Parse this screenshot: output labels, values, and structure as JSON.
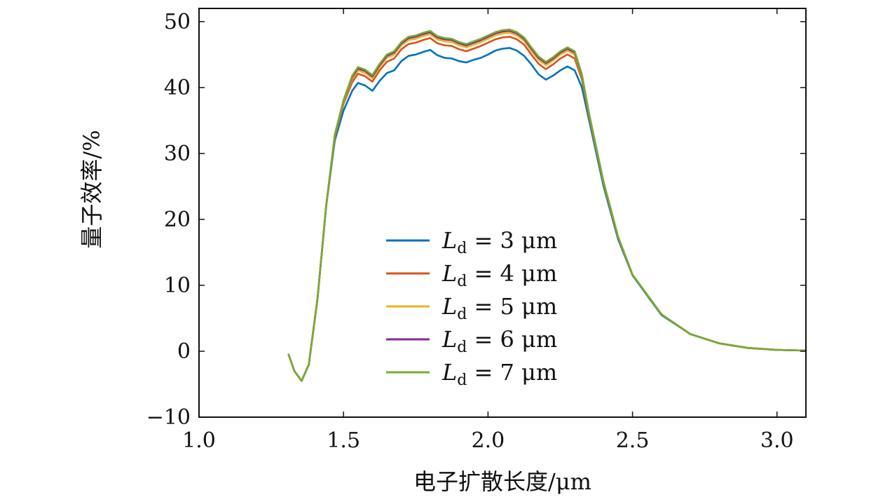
{
  "chart_data": {
    "type": "line",
    "title": "",
    "xlabel": "电子扩散长度/μm",
    "ylabel": "量子效率/%",
    "xlim": [
      1.0,
      3.1
    ],
    "ylim": [
      -10,
      52
    ],
    "xticks": [
      1.0,
      1.5,
      2.0,
      2.5,
      3.0
    ],
    "xtick_labels": [
      "1.0",
      "1.5",
      "2.0",
      "2.5",
      "3.0"
    ],
    "yticks": [
      -10,
      0,
      10,
      20,
      30,
      40,
      50
    ],
    "ytick_labels": [
      "−10",
      "0",
      "10",
      "20",
      "30",
      "40",
      "50"
    ],
    "legend_position": "center",
    "legend_symbol": "L",
    "legend_subscript": "d",
    "legend_unit": "μm",
    "x": [
      1.31,
      1.33,
      1.355,
      1.38,
      1.41,
      1.44,
      1.47,
      1.5,
      1.53,
      1.55,
      1.575,
      1.6,
      1.625,
      1.65,
      1.675,
      1.7,
      1.725,
      1.75,
      1.775,
      1.8,
      1.825,
      1.85,
      1.875,
      1.9,
      1.925,
      1.95,
      1.975,
      2.0,
      2.025,
      2.05,
      2.075,
      2.1,
      2.125,
      2.15,
      2.175,
      2.2,
      2.225,
      2.25,
      2.275,
      2.3,
      2.325,
      2.35,
      2.4,
      2.45,
      2.5,
      2.6,
      2.7,
      2.8,
      2.9,
      3.0,
      3.1
    ],
    "series": [
      {
        "name": "3",
        "color": "#0072BD",
        "values": [
          -0.5,
          -3.0,
          -4.5,
          -2.0,
          8.0,
          22.0,
          32.0,
          36.5,
          39.5,
          40.7,
          40.3,
          39.5,
          41.0,
          42.2,
          42.6,
          44.0,
          44.8,
          45.0,
          45.4,
          45.7,
          44.9,
          44.5,
          44.4,
          44.0,
          43.8,
          44.2,
          44.5,
          45.0,
          45.6,
          45.9,
          46.0,
          45.6,
          44.8,
          43.5,
          42.0,
          41.2,
          41.8,
          42.6,
          43.2,
          42.6,
          40.0,
          35.0,
          25.0,
          17.0,
          11.5,
          5.5,
          2.6,
          1.2,
          0.5,
          0.2,
          0.1
        ]
      },
      {
        "name": "4",
        "color": "#D95319",
        "values": [
          -0.5,
          -3.0,
          -4.5,
          -2.0,
          8.0,
          22.0,
          32.5,
          37.5,
          40.8,
          42.1,
          41.7,
          40.9,
          42.6,
          43.9,
          44.4,
          45.8,
          46.6,
          46.8,
          47.2,
          47.5,
          46.7,
          46.4,
          46.3,
          45.8,
          45.5,
          45.9,
          46.3,
          46.8,
          47.3,
          47.6,
          47.7,
          47.3,
          46.5,
          45.0,
          43.6,
          42.8,
          43.5,
          44.4,
          45.0,
          44.4,
          41.2,
          35.6,
          25.4,
          17.2,
          11.6,
          5.6,
          2.6,
          1.2,
          0.5,
          0.2,
          0.1
        ]
      },
      {
        "name": "5",
        "color": "#EDB120",
        "values": [
          -0.5,
          -3.0,
          -4.5,
          -2.0,
          8.0,
          22.0,
          32.7,
          37.8,
          41.3,
          42.6,
          42.2,
          41.4,
          43.1,
          44.5,
          45.0,
          46.4,
          47.2,
          47.4,
          47.8,
          48.1,
          47.3,
          47.0,
          46.9,
          46.4,
          46.1,
          46.5,
          46.9,
          47.4,
          47.9,
          48.2,
          48.3,
          47.9,
          47.1,
          45.6,
          44.2,
          43.4,
          44.1,
          45.0,
          45.6,
          45.0,
          41.6,
          35.8,
          25.5,
          17.3,
          11.6,
          5.6,
          2.6,
          1.2,
          0.5,
          0.2,
          0.1
        ]
      },
      {
        "name": "6",
        "color": "#7E2F8E",
        "values": [
          -0.5,
          -3.0,
          -4.5,
          -2.0,
          8.0,
          22.0,
          32.8,
          38.0,
          41.6,
          42.9,
          42.5,
          41.7,
          43.4,
          44.8,
          45.3,
          46.7,
          47.5,
          47.7,
          48.1,
          48.4,
          47.6,
          47.3,
          47.2,
          46.7,
          46.4,
          46.8,
          47.2,
          47.7,
          48.2,
          48.5,
          48.6,
          48.2,
          47.4,
          45.9,
          44.5,
          43.7,
          44.4,
          45.3,
          45.9,
          45.3,
          41.8,
          35.9,
          25.6,
          17.3,
          11.6,
          5.6,
          2.6,
          1.2,
          0.5,
          0.2,
          0.1
        ]
      },
      {
        "name": "7",
        "color": "#77AC30",
        "values": [
          -0.5,
          -3.0,
          -4.5,
          -2.0,
          8.0,
          22.0,
          32.9,
          38.1,
          41.8,
          43.1,
          42.7,
          41.9,
          43.6,
          45.0,
          45.5,
          46.9,
          47.7,
          47.9,
          48.3,
          48.6,
          47.8,
          47.5,
          47.4,
          46.9,
          46.6,
          47.0,
          47.4,
          47.9,
          48.4,
          48.7,
          48.8,
          48.4,
          47.6,
          46.1,
          44.7,
          43.9,
          44.6,
          45.5,
          46.1,
          45.5,
          42.0,
          36.0,
          25.7,
          17.4,
          11.6,
          5.6,
          2.6,
          1.2,
          0.5,
          0.2,
          0.1
        ]
      }
    ]
  }
}
